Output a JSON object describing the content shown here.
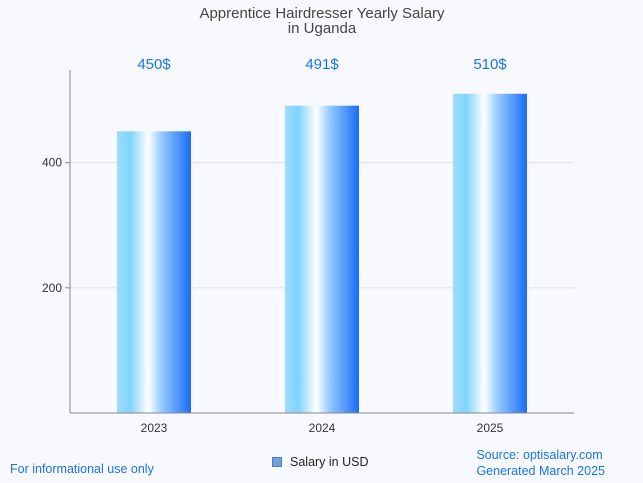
{
  "chart_data": {
    "type": "bar",
    "title": [
      "Apprentice Hairdresser Yearly Salary",
      "in Uganda"
    ],
    "categories": [
      "2023",
      "2024",
      "2025"
    ],
    "series": [
      {
        "name": "Salary in USD",
        "values": [
          450,
          491,
          510
        ]
      }
    ],
    "data_labels": [
      "450$",
      "491$",
      "510$"
    ],
    "yticks": [
      200,
      400
    ],
    "ylim": [
      0,
      548
    ],
    "grid": true,
    "legend": "bottom-center"
  },
  "footer": {
    "note": "For informational use only",
    "source": "Source: optisalary.com",
    "generated": "Generated March 2025"
  },
  "colors": {
    "bar_light": "#e6f6ff",
    "bar_mid": "#7fd3fb",
    "bar_dark": "#1a6cf5",
    "grid": "#e0e0e0",
    "axis": "#888888"
  }
}
